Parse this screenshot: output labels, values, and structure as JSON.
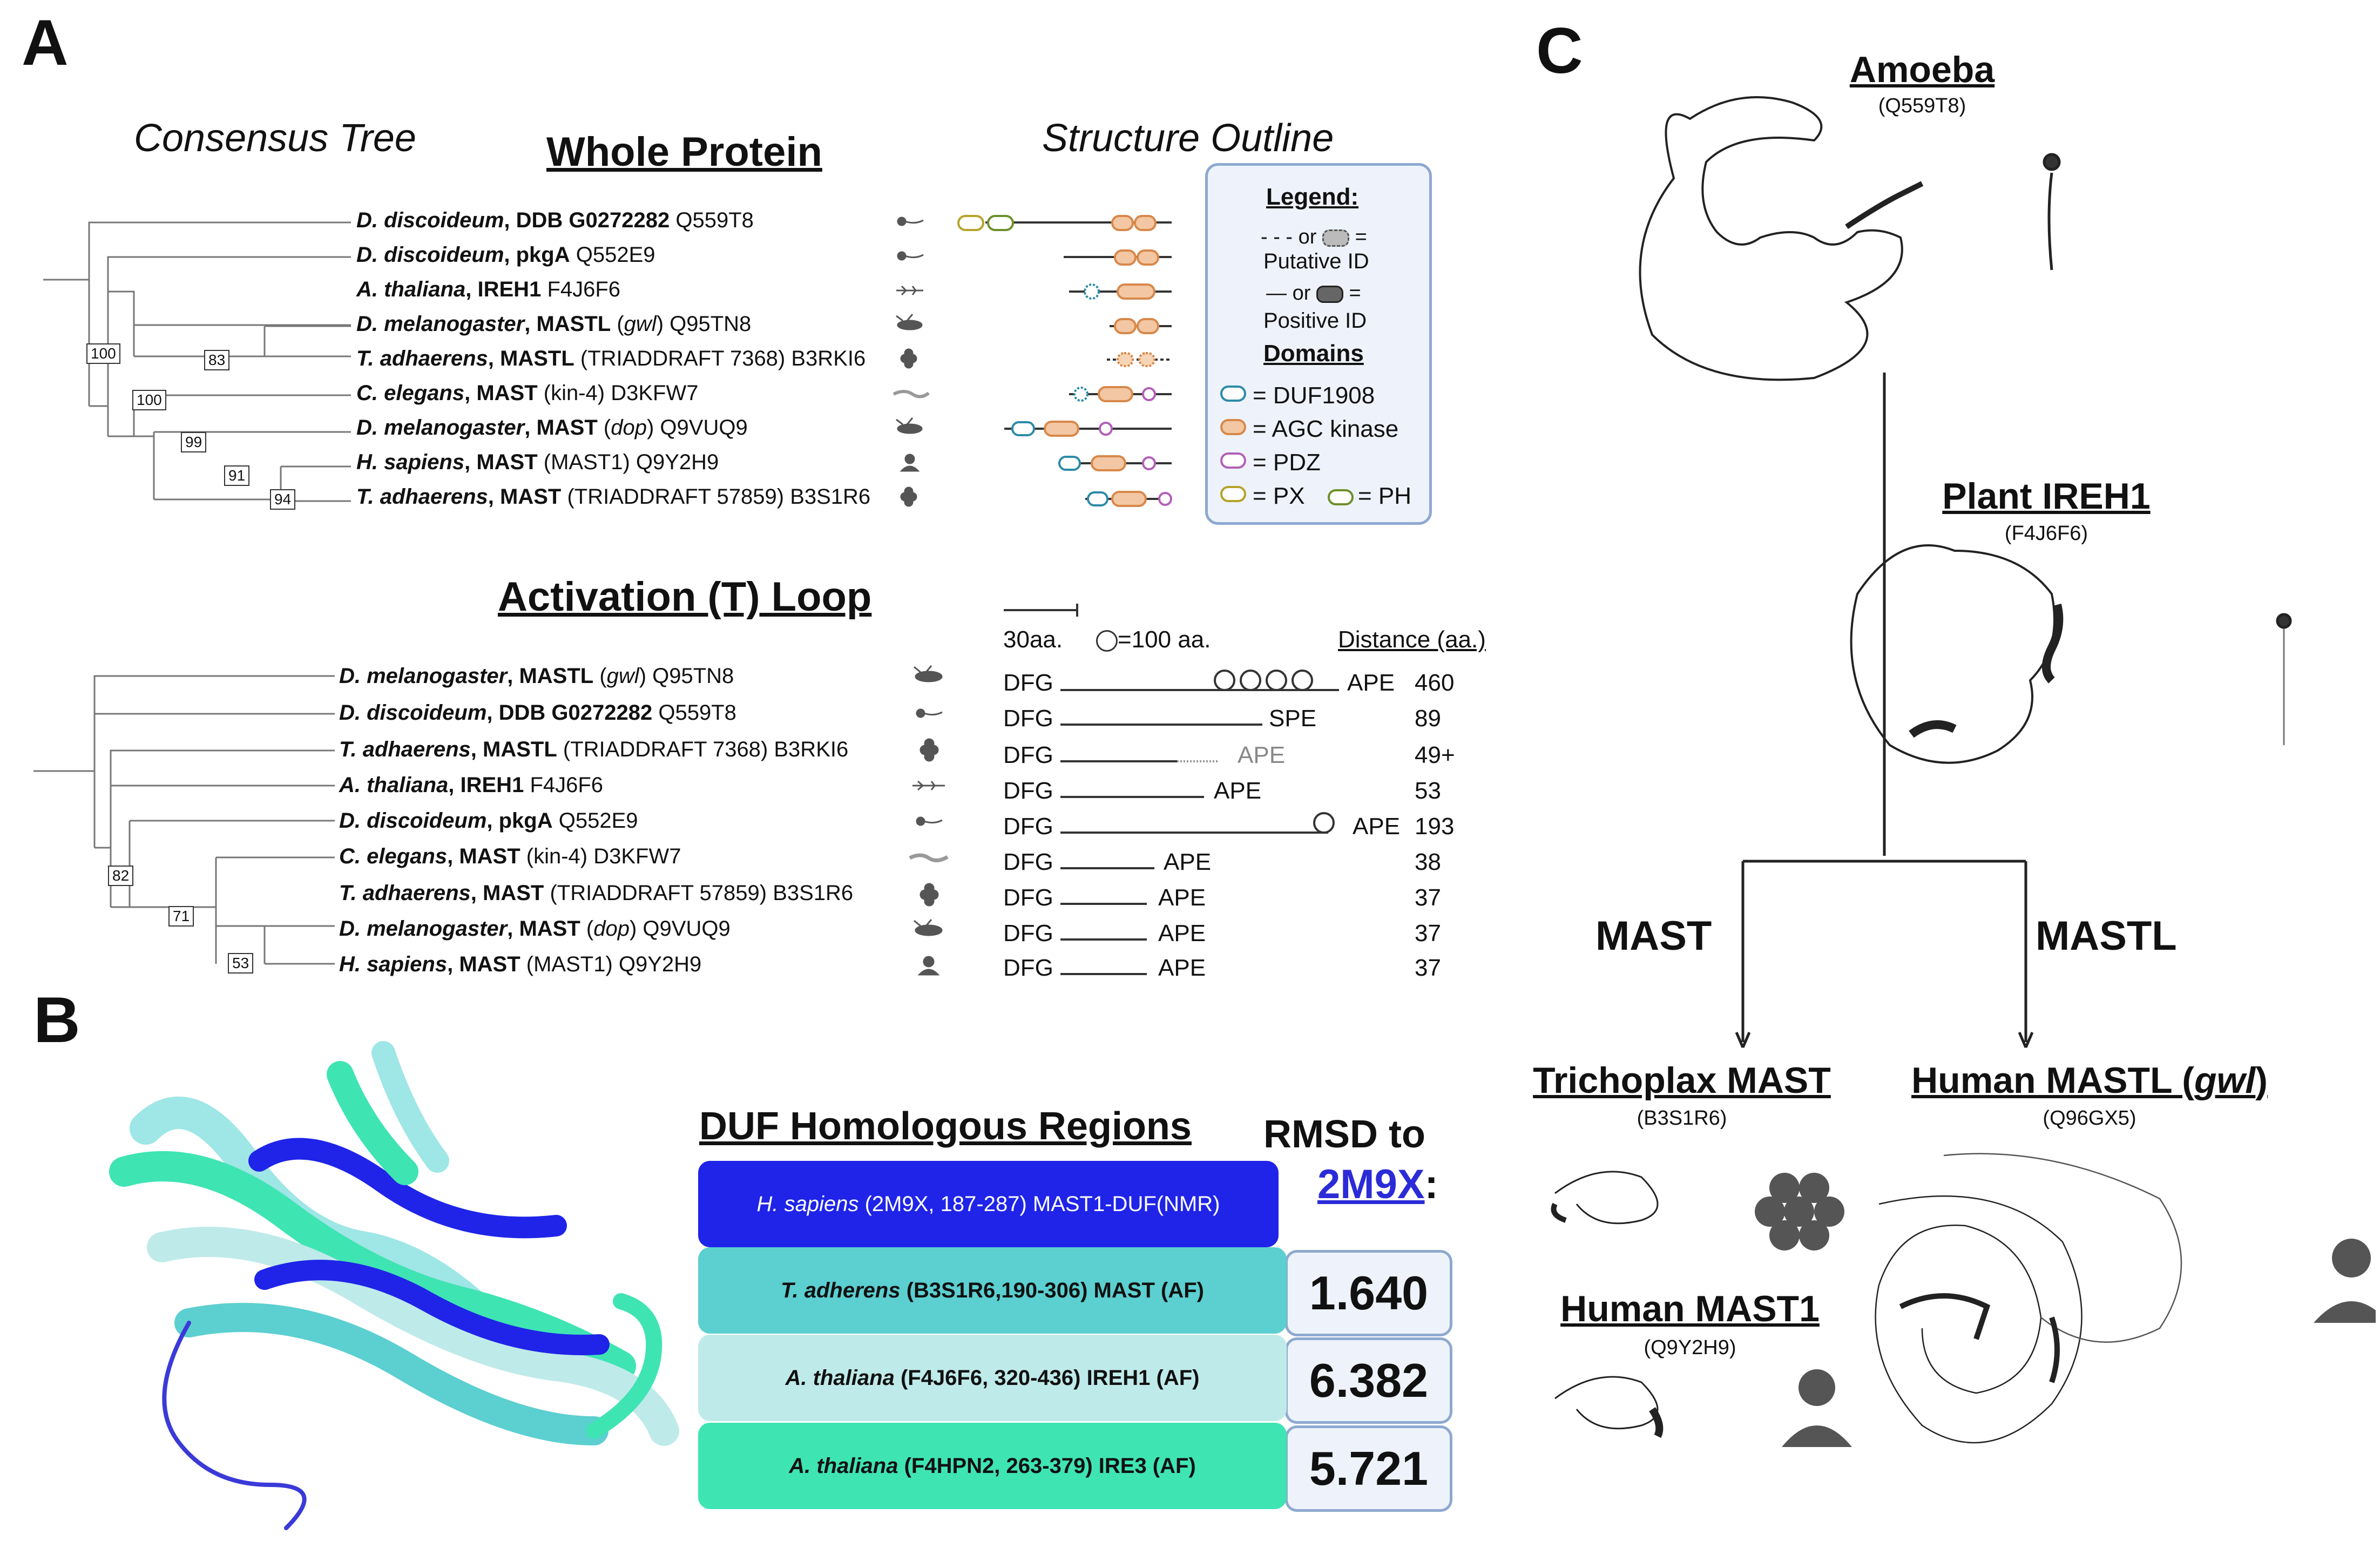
{
  "panels": {
    "a": "A",
    "b": "B",
    "c": "C"
  },
  "panel_a": {
    "consensus_tree": "Consensus Tree",
    "whole_protein": "Whole Protein",
    "structure_outline": "Structure Outline",
    "whole_rows": [
      {
        "genus": "D. discoideum",
        "name": "DDB G0272282",
        "id": "Q559T8"
      },
      {
        "genus": "D. discoideum",
        "name": "pkgA",
        "id": "Q552E9"
      },
      {
        "genus": "A. thaliana",
        "name": "IREH1",
        "id": "F4J6F6"
      },
      {
        "genus": "D. melanogaster",
        "name": "MASTL",
        "alias": "gwl",
        "id": "Q95TN8"
      },
      {
        "genus": "T. adhaerens",
        "name": "MASTL",
        "strain": "TRIADDRAFT 7368",
        "id": "B3RKI6"
      },
      {
        "genus": "C. elegans",
        "name": "MAST",
        "strain": "kin-4",
        "id": "D3KFW7"
      },
      {
        "genus": "D. melanogaster",
        "name": "MAST",
        "alias": "dop",
        "id": "Q9VUQ9"
      },
      {
        "genus": "H. sapiens",
        "name": "MAST",
        "strain": "MAST1",
        "id": "Q9Y2H9"
      },
      {
        "genus": "T. adhaerens",
        "name": "MAST",
        "strain": "TRIADDRAFT 57859",
        "id": "B3S1R6"
      }
    ],
    "whole_bootstraps": [
      "100",
      "83",
      "100",
      "99",
      "91",
      "94"
    ],
    "legend": {
      "title": "Legend:",
      "putative_or": "or",
      "putative": "Putative ID",
      "positive_or": "or",
      "positive": "Positive ID",
      "domains_title": "Domains",
      "duf": "= DUF1908",
      "agc": "= AGC kinase",
      "pdz": "= PDZ",
      "px": "= PX",
      "ph": "= PH",
      "eq": "="
    },
    "activation_title": "Activation (T) Loop",
    "scale_label": "30aa.",
    "circle_label": "=100 aa.",
    "distance_header": "Distance (aa.)",
    "activation_rows": [
      {
        "genus": "D. melanogaster",
        "name": "MASTL",
        "alias": "gwl",
        "id": "Q95TN8",
        "start": "DFG",
        "end": "APE",
        "distance": "460"
      },
      {
        "genus": "D. discoideum",
        "name": "DDB G0272282",
        "id": "Q559T8",
        "start": "DFG",
        "end": "SPE",
        "distance": "89"
      },
      {
        "genus": "T. adhaerens",
        "name": "MASTL",
        "strain": "TRIADDRAFT 7368",
        "id": "B3RKI6",
        "start": "DFG",
        "end": "APE",
        "distance": "49+"
      },
      {
        "genus": "A. thaliana",
        "name": "IREH1",
        "id": "F4J6F6",
        "start": "DFG",
        "end": "APE",
        "distance": "53"
      },
      {
        "genus": "D. discoideum",
        "name": "pkgA",
        "id": "Q552E9",
        "start": "DFG",
        "end": "APE",
        "distance": "193"
      },
      {
        "genus": "C. elegans",
        "name": "MAST",
        "strain": "kin-4",
        "id": "D3KFW7",
        "start": "DFG",
        "end": "APE",
        "distance": "38"
      },
      {
        "genus": "T. adhaerens",
        "name": "MAST",
        "strain": "TRIADDRAFT 57859",
        "id": "B3S1R6",
        "start": "DFG",
        "end": "APE",
        "distance": "37"
      },
      {
        "genus": "D. melanogaster",
        "name": "MAST",
        "alias": "dop",
        "id": "Q9VUQ9",
        "start": "DFG",
        "end": "APE",
        "distance": "37"
      },
      {
        "genus": "H. sapiens",
        "name": "MAST",
        "strain": "MAST1",
        "id": "Q9Y2H9",
        "start": "DFG",
        "end": "APE",
        "distance": "37"
      }
    ],
    "activation_bootstraps": [
      "82",
      "71",
      "53"
    ]
  },
  "panel_b": {
    "duf_title": "DUF Homologous Regions",
    "rmsd_title": "RMSD to",
    "rmsd_ref": "2M9X",
    "rmsd_colon": ":",
    "rows": [
      {
        "species": "H. sapiens",
        "detail": "(2M9X, 187-287) MAST1-DUF(NMR)",
        "rmsd": "",
        "color": "#1f24e8",
        "text_color": "#ffffff"
      },
      {
        "species": "T. adherens",
        "detail": "(B3S1R6,190-306) MAST (AF)",
        "rmsd": "1.640",
        "color": "#5ccfd0",
        "text_color": "#111111"
      },
      {
        "species": "A. thaliana",
        "detail": "(F4J6F6, 320-436) IREH1 (AF)",
        "rmsd": "6.382",
        "color": "#bfeaea",
        "text_color": "#111111"
      },
      {
        "species": "A. thaliana",
        "detail": "(F4HPN2, 263-379) IRE3 (AF)",
        "rmsd": "5.721",
        "color": "#3fe4b3",
        "text_color": "#111111"
      }
    ]
  },
  "panel_c": {
    "amoeba": {
      "title": "Amoeba",
      "id": "(Q559T8)"
    },
    "plant": {
      "title": "Plant IREH1",
      "id": "(F4J6F6)"
    },
    "mast_label": "MAST",
    "mastl_label": "MASTL",
    "trichoplax": {
      "title": "Trichoplax MAST",
      "id": "(B3S1R6)"
    },
    "human_mastl": {
      "title": "Human MASTL (",
      "alias": "gwl",
      "close": ")",
      "id": "(Q96GX5)"
    },
    "human_mast1": {
      "title": "Human MAST1",
      "id": "(Q9Y2H9)"
    }
  },
  "colors": {
    "duf": "#2c8aa8",
    "agc": "#d8884a",
    "pdz": "#b25fb8",
    "px": "#b5a32a",
    "ph": "#6d8f2a",
    "legend_border": "#8ea9cf",
    "legend_bg": "#eef3fb",
    "link": "#2b2bd8"
  }
}
